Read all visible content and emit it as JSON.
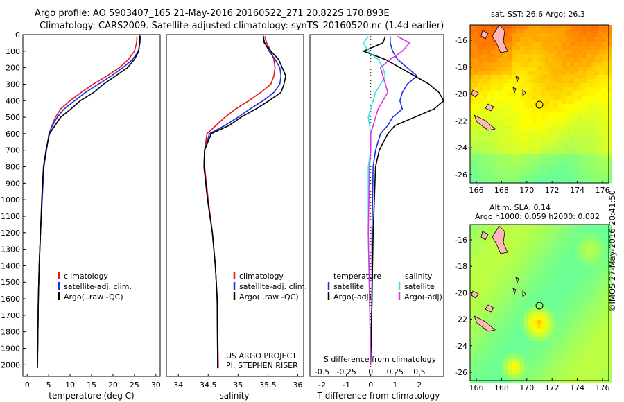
{
  "header": {
    "line1": "Argo profile: AO 5903407_165 21-May-2016 20160522_271 20.822S 170.893E",
    "line2": "Climatology: CARS2009. Satellite-adjusted climatology: synTS_20160520.nc (1.4d earlier)"
  },
  "colors": {
    "climatology": "#e8141b",
    "satellite": "#1f2ee0",
    "argo": "#000000",
    "sat_salinity": "#2ee6e6",
    "argo_salinity": "#e02ee0",
    "coast": "#ffb6b6"
  },
  "chart_data": [
    {
      "type": "line",
      "id": "temperature",
      "xlabel": "temperature (deg C)",
      "ylabel": "",
      "xlim": [
        -1,
        31
      ],
      "ylim": [
        2070,
        0
      ],
      "xticks": [
        0,
        5,
        10,
        15,
        20,
        25,
        30
      ],
      "yticks": [
        0,
        100,
        200,
        300,
        400,
        500,
        600,
        700,
        800,
        900,
        1000,
        1100,
        1200,
        1300,
        1400,
        1500,
        1600,
        1700,
        1800,
        1900,
        2000
      ],
      "legend": [
        "climatology",
        "satellite-adj. clim.",
        "Argo(..raw -QC)"
      ],
      "series": [
        {
          "name": "climatology",
          "color": "#e8141b",
          "x": [
            25.6,
            25.5,
            25.0,
            23.6,
            21.5,
            18.6,
            15.4,
            12.6,
            10.0,
            7.8,
            6.6,
            5.8,
            5.1,
            4.5,
            3.9,
            3.5,
            3.1,
            2.8,
            2.6,
            2.5,
            2.4
          ],
          "y": [
            10,
            50,
            100,
            150,
            200,
            250,
            300,
            350,
            400,
            450,
            500,
            550,
            600,
            700,
            800,
            1000,
            1200,
            1400,
            1600,
            1800,
            2000
          ]
        },
        {
          "name": "satellite-adj. clim.",
          "color": "#1f2ee0",
          "x": [
            26.4,
            26.3,
            25.9,
            24.6,
            22.3,
            19.6,
            16.6,
            13.6,
            11.1,
            8.6,
            7.0,
            5.9,
            5.1,
            4.5,
            3.9,
            3.5,
            3.1,
            2.8,
            2.6,
            2.5,
            2.4
          ],
          "y": [
            10,
            50,
            100,
            150,
            200,
            250,
            300,
            350,
            400,
            450,
            500,
            550,
            600,
            700,
            800,
            1000,
            1200,
            1400,
            1600,
            1800,
            2000
          ]
        },
        {
          "name": "Argo(..raw -QC)",
          "color": "#000000",
          "x": [
            26.3,
            26.2,
            26.0,
            25.0,
            23.4,
            20.6,
            17.8,
            15.5,
            12.4,
            10.2,
            7.8,
            6.5,
            5.2,
            4.4,
            3.8,
            3.4,
            3.1,
            2.8,
            2.6,
            2.5,
            2.4
          ],
          "y": [
            5,
            50,
            100,
            150,
            200,
            250,
            300,
            350,
            400,
            450,
            500,
            550,
            600,
            700,
            800,
            1000,
            1200,
            1400,
            1600,
            1800,
            2020
          ]
        }
      ]
    },
    {
      "type": "line",
      "id": "salinity",
      "xlabel": "salinity",
      "xlim": [
        33.8,
        36.1
      ],
      "ylim": [
        2070,
        0
      ],
      "xticks": [
        34,
        34.5,
        35,
        35.5,
        36
      ],
      "legend": [
        "climatology",
        "satellite-adj. clim.",
        "Argo(..raw -QC)"
      ],
      "notes": [
        "US ARGO PROJECT",
        "PI: STEPHEN RISER"
      ],
      "series": [
        {
          "name": "climatology",
          "color": "#e8141b",
          "x": [
            35.45,
            35.48,
            35.55,
            35.6,
            35.62,
            35.6,
            35.55,
            35.38,
            35.18,
            34.96,
            34.78,
            34.63,
            34.48,
            34.44,
            34.44,
            34.5,
            34.57,
            34.62,
            34.65,
            34.67
          ],
          "y": [
            10,
            50,
            100,
            150,
            200,
            250,
            300,
            350,
            400,
            450,
            500,
            550,
            600,
            700,
            800,
            1000,
            1200,
            1400,
            1600,
            2020
          ]
        },
        {
          "name": "satellite-adj. clim.",
          "color": "#1f2ee0",
          "x": [
            35.42,
            35.45,
            35.52,
            35.62,
            35.7,
            35.72,
            35.7,
            35.6,
            35.42,
            35.2,
            35.0,
            34.78,
            34.52,
            34.44,
            34.43,
            34.49,
            34.57,
            34.62,
            34.65,
            34.66
          ],
          "y": [
            10,
            50,
            100,
            150,
            200,
            250,
            300,
            350,
            400,
            450,
            500,
            550,
            600,
            700,
            800,
            1000,
            1200,
            1400,
            1600,
            2020
          ]
        },
        {
          "name": "Argo(..raw -QC)",
          "color": "#000000",
          "x": [
            35.42,
            35.44,
            35.55,
            35.68,
            35.74,
            35.8,
            35.77,
            35.72,
            35.52,
            35.3,
            35.05,
            34.85,
            34.55,
            34.44,
            34.43,
            34.49,
            34.57,
            34.62,
            34.65,
            34.66
          ],
          "y": [
            5,
            50,
            100,
            150,
            200,
            250,
            300,
            350,
            400,
            450,
            500,
            550,
            600,
            700,
            800,
            1000,
            1200,
            1400,
            1600,
            2020
          ]
        }
      ]
    },
    {
      "type": "line",
      "id": "differences",
      "xlabel": "T difference from climatology",
      "xlabel_top": "S difference from climatology",
      "xlim": [
        -2.5,
        3.0
      ],
      "ylim": [
        2070,
        0
      ],
      "xticks": [
        -2,
        -1,
        0,
        1,
        2
      ],
      "xticks_salinity": [
        -0.5,
        -0.25,
        0,
        0.25,
        0.5
      ],
      "legend": [
        "temperature",
        "satellite",
        "Argo(-adj)",
        "salinity",
        "satellite",
        "Argo(-adj)"
      ],
      "series": [
        {
          "name": "temperature satellite",
          "color": "#1f2ee0",
          "x": [
            0.8,
            0.8,
            0.9,
            1.1,
            1.5,
            1.9,
            1.5,
            1.3,
            1.2,
            1.3,
            0.9,
            0.7,
            0.4,
            0.2,
            0.1,
            0.05,
            0.05,
            0.0
          ],
          "y": [
            10,
            50,
            100,
            150,
            200,
            250,
            300,
            350,
            400,
            450,
            500,
            550,
            600,
            700,
            800,
            1200,
            1600,
            2000
          ]
        },
        {
          "name": "temperature Argo(-adj)",
          "color": "#000000",
          "x": [
            0.6,
            0.5,
            -0.3,
            0.6,
            1.2,
            1.8,
            2.4,
            2.8,
            3.0,
            2.6,
            1.8,
            1.0,
            0.7,
            0.35,
            0.2,
            0.1,
            0.05,
            0.0
          ],
          "y": [
            10,
            50,
            100,
            150,
            200,
            250,
            300,
            350,
            400,
            450,
            500,
            550,
            600,
            700,
            800,
            1200,
            1600,
            2000
          ]
        },
        {
          "name": "salinity satellite",
          "color": "#2ee6e6",
          "x": [
            -0.1,
            -0.3,
            -0.1,
            0.3,
            0.5,
            0.6,
            0.4,
            0.2,
            0.1,
            0.0,
            -0.1,
            -0.05,
            0.0,
            0.0,
            -0.1,
            -0.1,
            -0.05,
            0.0
          ],
          "y": [
            10,
            50,
            100,
            150,
            200,
            250,
            300,
            350,
            400,
            450,
            500,
            550,
            600,
            700,
            800,
            1200,
            1600,
            2000
          ]
        },
        {
          "name": "salinity Argo(-adj)",
          "color": "#e02ee0",
          "x": [
            1.1,
            1.6,
            1.3,
            0.8,
            0.4,
            0.5,
            0.6,
            0.7,
            0.5,
            0.3,
            0.2,
            0.1,
            0.0,
            0.0,
            -0.05,
            -0.1,
            -0.05,
            0.0
          ],
          "y": [
            10,
            50,
            100,
            150,
            200,
            250,
            300,
            350,
            400,
            450,
            500,
            550,
            600,
            700,
            800,
            1200,
            1600,
            2000
          ]
        }
      ]
    }
  ],
  "maps": [
    {
      "title": "sat. SST: 26.6 Argo: 26.3",
      "xticks": [
        "166",
        "168",
        "170",
        "172",
        "174",
        "176"
      ],
      "yticks": [
        "-16",
        "-18",
        "-20",
        "-22",
        "-24",
        "-26"
      ]
    },
    {
      "title_line1": "Altim. SLA: 0.14",
      "title_line2": "Argo h1000: 0.059 h2000: 0.082",
      "xticks": [
        "166",
        "168",
        "170",
        "172",
        "174",
        "176"
      ],
      "yticks": [
        "-16",
        "-18",
        "-20",
        "-22",
        "-24",
        "-26"
      ]
    }
  ],
  "stamp": "©IMOS 27-May-2016 20:41:50"
}
